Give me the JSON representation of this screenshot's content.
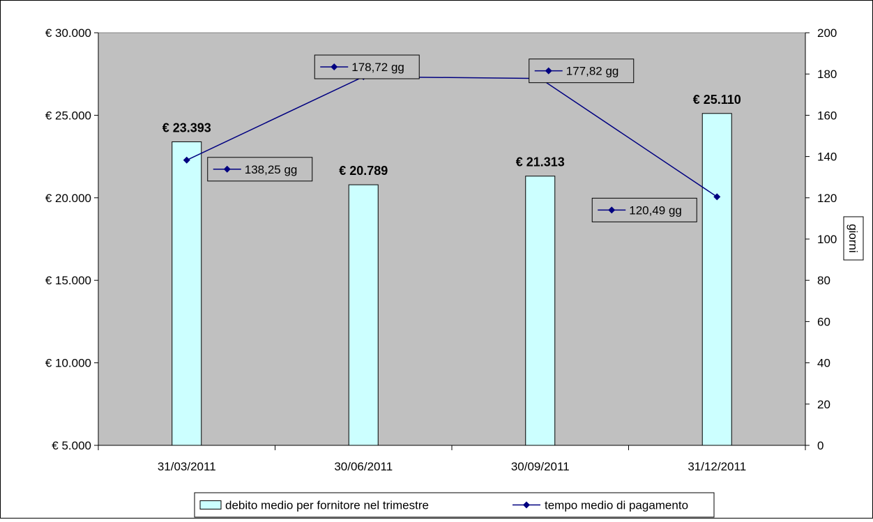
{
  "chart_data": {
    "type": "bar",
    "categories": [
      "31/03/2011",
      "30/06/2011",
      "30/09/2011",
      "31/12/2011"
    ],
    "series": [
      {
        "name": "debito medio per fornitore nel trimestre",
        "kind": "bar",
        "axis": "left",
        "values": [
          23393,
          20789,
          21313,
          25110
        ],
        "labels": [
          "€ 23.393",
          "€ 20.789",
          "€ 21.313",
          "€ 25.110"
        ],
        "color": "#ccffff"
      },
      {
        "name": "tempo medio di pagamento",
        "kind": "line",
        "axis": "right",
        "values": [
          138.25,
          178.72,
          177.82,
          120.49
        ],
        "labels": [
          "138,25 gg",
          "178,72 gg",
          "177,82 gg",
          "120,49 gg"
        ],
        "color": "#000080"
      }
    ],
    "y_left": {
      "ylim": [
        5000,
        30000
      ],
      "ticks": [
        5000,
        10000,
        15000,
        20000,
        25000,
        30000
      ],
      "tick_labels": [
        "€ 5.000",
        "€ 10.000",
        "€ 15.000",
        "€ 20.000",
        "€ 25.000",
        "€ 30.000"
      ]
    },
    "y_right": {
      "ylabel": "giorni",
      "ylim": [
        0,
        200
      ],
      "ticks": [
        0,
        20,
        40,
        60,
        80,
        100,
        120,
        140,
        160,
        180,
        200
      ],
      "tick_labels": [
        "0",
        "20",
        "40",
        "60",
        "80",
        "100",
        "120",
        "140",
        "160",
        "180",
        "200"
      ]
    },
    "grid": false,
    "legend_position": "bottom",
    "plot_background": "#c0c0c0"
  }
}
